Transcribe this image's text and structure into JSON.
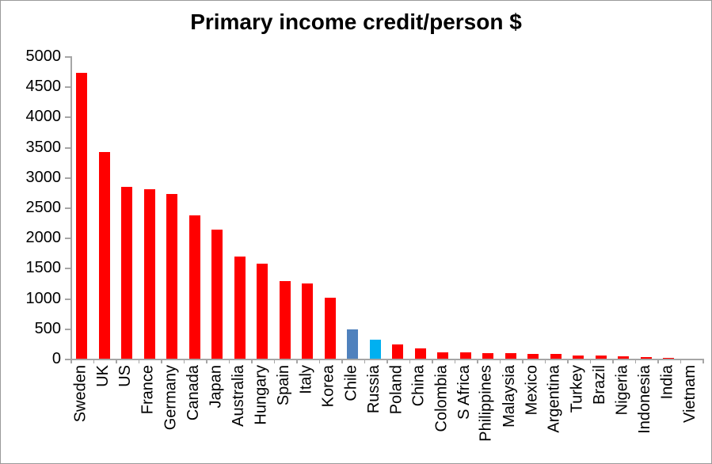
{
  "page": {
    "background": "#FFFFFF",
    "border_color": "#9A9A9A"
  },
  "colors": {
    "axis": "#A6A6A6",
    "text": "#000000",
    "bar_default": "#FF0000",
    "bar_chile": "#4F81BD",
    "bar_russia": "#00B0F0"
  },
  "chart_data": {
    "type": "bar",
    "title": "Primary income credit/person $",
    "xlabel": "",
    "ylabel": "",
    "ylim": [
      0,
      5000
    ],
    "ytick_step": 500,
    "ytick_labels": [
      "0",
      "500",
      "1000",
      "1500",
      "2000",
      "2500",
      "3000",
      "3500",
      "4000",
      "4500",
      "5000"
    ],
    "grid": false,
    "legend": "none",
    "categories": [
      "Sweden",
      "UK",
      "US",
      "France",
      "Germany",
      "Canada",
      "Japan",
      "Australia",
      "Hungary",
      "Spain",
      "Italy",
      "Korea",
      "Chile",
      "Russia",
      "Poland",
      "China",
      "Colombia",
      "S Africa",
      "Philippines",
      "Malaysia",
      "Mexico",
      "Argentina",
      "Turkey",
      "Brazil",
      "Nigeria",
      "Indonesia",
      "India",
      "Vietnam"
    ],
    "values": [
      4720,
      3420,
      2845,
      2805,
      2720,
      2375,
      2135,
      1685,
      1570,
      1285,
      1240,
      1010,
      490,
      320,
      230,
      175,
      105,
      100,
      95,
      88,
      85,
      78,
      55,
      50,
      40,
      22,
      10,
      3
    ],
    "bar_colors": [
      "#FF0000",
      "#FF0000",
      "#FF0000",
      "#FF0000",
      "#FF0000",
      "#FF0000",
      "#FF0000",
      "#FF0000",
      "#FF0000",
      "#FF0000",
      "#FF0000",
      "#FF0000",
      "#4F81BD",
      "#00B0F0",
      "#FF0000",
      "#FF0000",
      "#FF0000",
      "#FF0000",
      "#FF0000",
      "#FF0000",
      "#FF0000",
      "#FF0000",
      "#FF0000",
      "#FF0000",
      "#FF0000",
      "#FF0000",
      "#FF0000",
      "#FF0000"
    ]
  }
}
